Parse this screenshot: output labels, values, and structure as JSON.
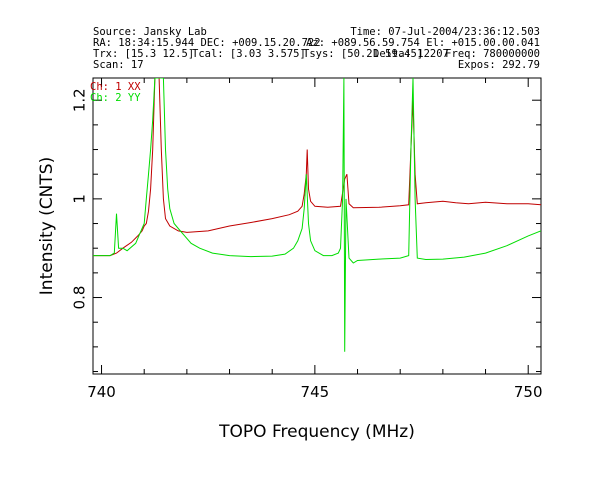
{
  "header": {
    "source": "Source: Jansky Lab",
    "time": "Time: 07-Jul-2004/23:36:12.503",
    "ra_dec": "RA: 18:34:15.944 DEC: +009.15.20.722",
    "az_el": "Az: +089.56.59.754 El: +015.00.00.041",
    "trx": "Trx: [15.3 12.5]",
    "tcal": "Tcal: [3.03 3.575]",
    "tsys": "Tsys: [50.21 59.45]",
    "delta": "Delta: 12207",
    "freq": "Freq: 780000000",
    "scan": "Scan: 17",
    "expos": "Expos: 292.79"
  },
  "chart_data": {
    "type": "line",
    "xlabel": "TOPO Frequency (MHz)",
    "ylabel": "Intensity (CNTS)",
    "xlim": [
      739.8,
      750.3
    ],
    "ylim": [
      0.645,
      1.245
    ],
    "xticks": [
      "740",
      "745",
      "750"
    ],
    "yticks": [
      "0.8",
      "1",
      "1.2"
    ],
    "series": [
      {
        "name": "Ch: 1 XX",
        "color": "#c00000",
        "points": [
          [
            739.8,
            0.885
          ],
          [
            740.2,
            0.885
          ],
          [
            740.35,
            0.89
          ],
          [
            740.5,
            0.9
          ],
          [
            740.7,
            0.912
          ],
          [
            740.85,
            0.925
          ],
          [
            740.95,
            0.935
          ],
          [
            741.0,
            0.945
          ],
          [
            741.05,
            0.95
          ],
          [
            741.1,
            0.975
          ],
          [
            741.15,
            1.02
          ],
          [
            741.2,
            1.1
          ],
          [
            741.25,
            1.245
          ],
          [
            741.35,
            1.245
          ],
          [
            741.4,
            1.1
          ],
          [
            741.45,
            1.0
          ],
          [
            741.5,
            0.96
          ],
          [
            741.6,
            0.945
          ],
          [
            741.8,
            0.935
          ],
          [
            742.0,
            0.932
          ],
          [
            742.5,
            0.935
          ],
          [
            743.0,
            0.945
          ],
          [
            743.5,
            0.952
          ],
          [
            744.0,
            0.96
          ],
          [
            744.4,
            0.968
          ],
          [
            744.6,
            0.975
          ],
          [
            744.7,
            0.985
          ],
          [
            744.75,
            1.01
          ],
          [
            744.8,
            1.05
          ],
          [
            744.82,
            1.1
          ],
          [
            744.85,
            1.02
          ],
          [
            744.9,
            0.995
          ],
          [
            745.0,
            0.985
          ],
          [
            745.3,
            0.983
          ],
          [
            745.6,
            0.985
          ],
          [
            745.7,
            1.04
          ],
          [
            745.75,
            1.05
          ],
          [
            745.8,
            0.99
          ],
          [
            745.9,
            0.982
          ],
          [
            746.5,
            0.983
          ],
          [
            747.0,
            0.986
          ],
          [
            747.2,
            0.988
          ],
          [
            747.25,
            1.1
          ],
          [
            747.3,
            1.2
          ],
          [
            747.35,
            1.05
          ],
          [
            747.4,
            0.99
          ],
          [
            747.6,
            0.992
          ],
          [
            748.0,
            0.995
          ],
          [
            748.3,
            0.992
          ],
          [
            748.6,
            0.99
          ],
          [
            749.0,
            0.993
          ],
          [
            749.5,
            0.99
          ],
          [
            750.0,
            0.99
          ],
          [
            750.3,
            0.988
          ]
        ]
      },
      {
        "name": "Ch: 2 YY",
        "color": "#00dd00",
        "points": [
          [
            739.8,
            0.885
          ],
          [
            740.2,
            0.885
          ],
          [
            740.3,
            0.89
          ],
          [
            740.35,
            0.97
          ],
          [
            740.4,
            0.9
          ],
          [
            740.5,
            0.9
          ],
          [
            740.6,
            0.895
          ],
          [
            740.8,
            0.91
          ],
          [
            740.9,
            0.93
          ],
          [
            741.0,
            0.95
          ],
          [
            741.05,
            1.0
          ],
          [
            741.1,
            1.05
          ],
          [
            741.15,
            1.1
          ],
          [
            741.2,
            1.16
          ],
          [
            741.25,
            1.245
          ],
          [
            741.45,
            1.245
          ],
          [
            741.5,
            1.1
          ],
          [
            741.55,
            1.02
          ],
          [
            741.6,
            0.98
          ],
          [
            741.7,
            0.95
          ],
          [
            741.8,
            0.94
          ],
          [
            741.95,
            0.925
          ],
          [
            742.1,
            0.91
          ],
          [
            742.3,
            0.9
          ],
          [
            742.6,
            0.89
          ],
          [
            743.0,
            0.885
          ],
          [
            743.5,
            0.883
          ],
          [
            744.0,
            0.884
          ],
          [
            744.3,
            0.888
          ],
          [
            744.5,
            0.9
          ],
          [
            744.6,
            0.915
          ],
          [
            744.7,
            0.94
          ],
          [
            744.75,
            0.98
          ],
          [
            744.8,
            1.05
          ],
          [
            744.85,
            0.95
          ],
          [
            744.9,
            0.915
          ],
          [
            745.0,
            0.895
          ],
          [
            745.2,
            0.885
          ],
          [
            745.4,
            0.885
          ],
          [
            745.55,
            0.89
          ],
          [
            745.6,
            0.9
          ],
          [
            745.65,
            1.0
          ],
          [
            745.68,
            1.245
          ],
          [
            745.7,
            0.69
          ],
          [
            745.73,
            1.0
          ],
          [
            745.8,
            0.88
          ],
          [
            745.9,
            0.87
          ],
          [
            746.0,
            0.875
          ],
          [
            746.5,
            0.878
          ],
          [
            747.0,
            0.88
          ],
          [
            747.2,
            0.885
          ],
          [
            747.25,
            1.1
          ],
          [
            747.3,
            1.245
          ],
          [
            747.35,
            1.0
          ],
          [
            747.4,
            0.88
          ],
          [
            747.6,
            0.877
          ],
          [
            748.0,
            0.878
          ],
          [
            748.5,
            0.882
          ],
          [
            749.0,
            0.89
          ],
          [
            749.5,
            0.905
          ],
          [
            750.0,
            0.925
          ],
          [
            750.3,
            0.935
          ]
        ]
      }
    ]
  }
}
